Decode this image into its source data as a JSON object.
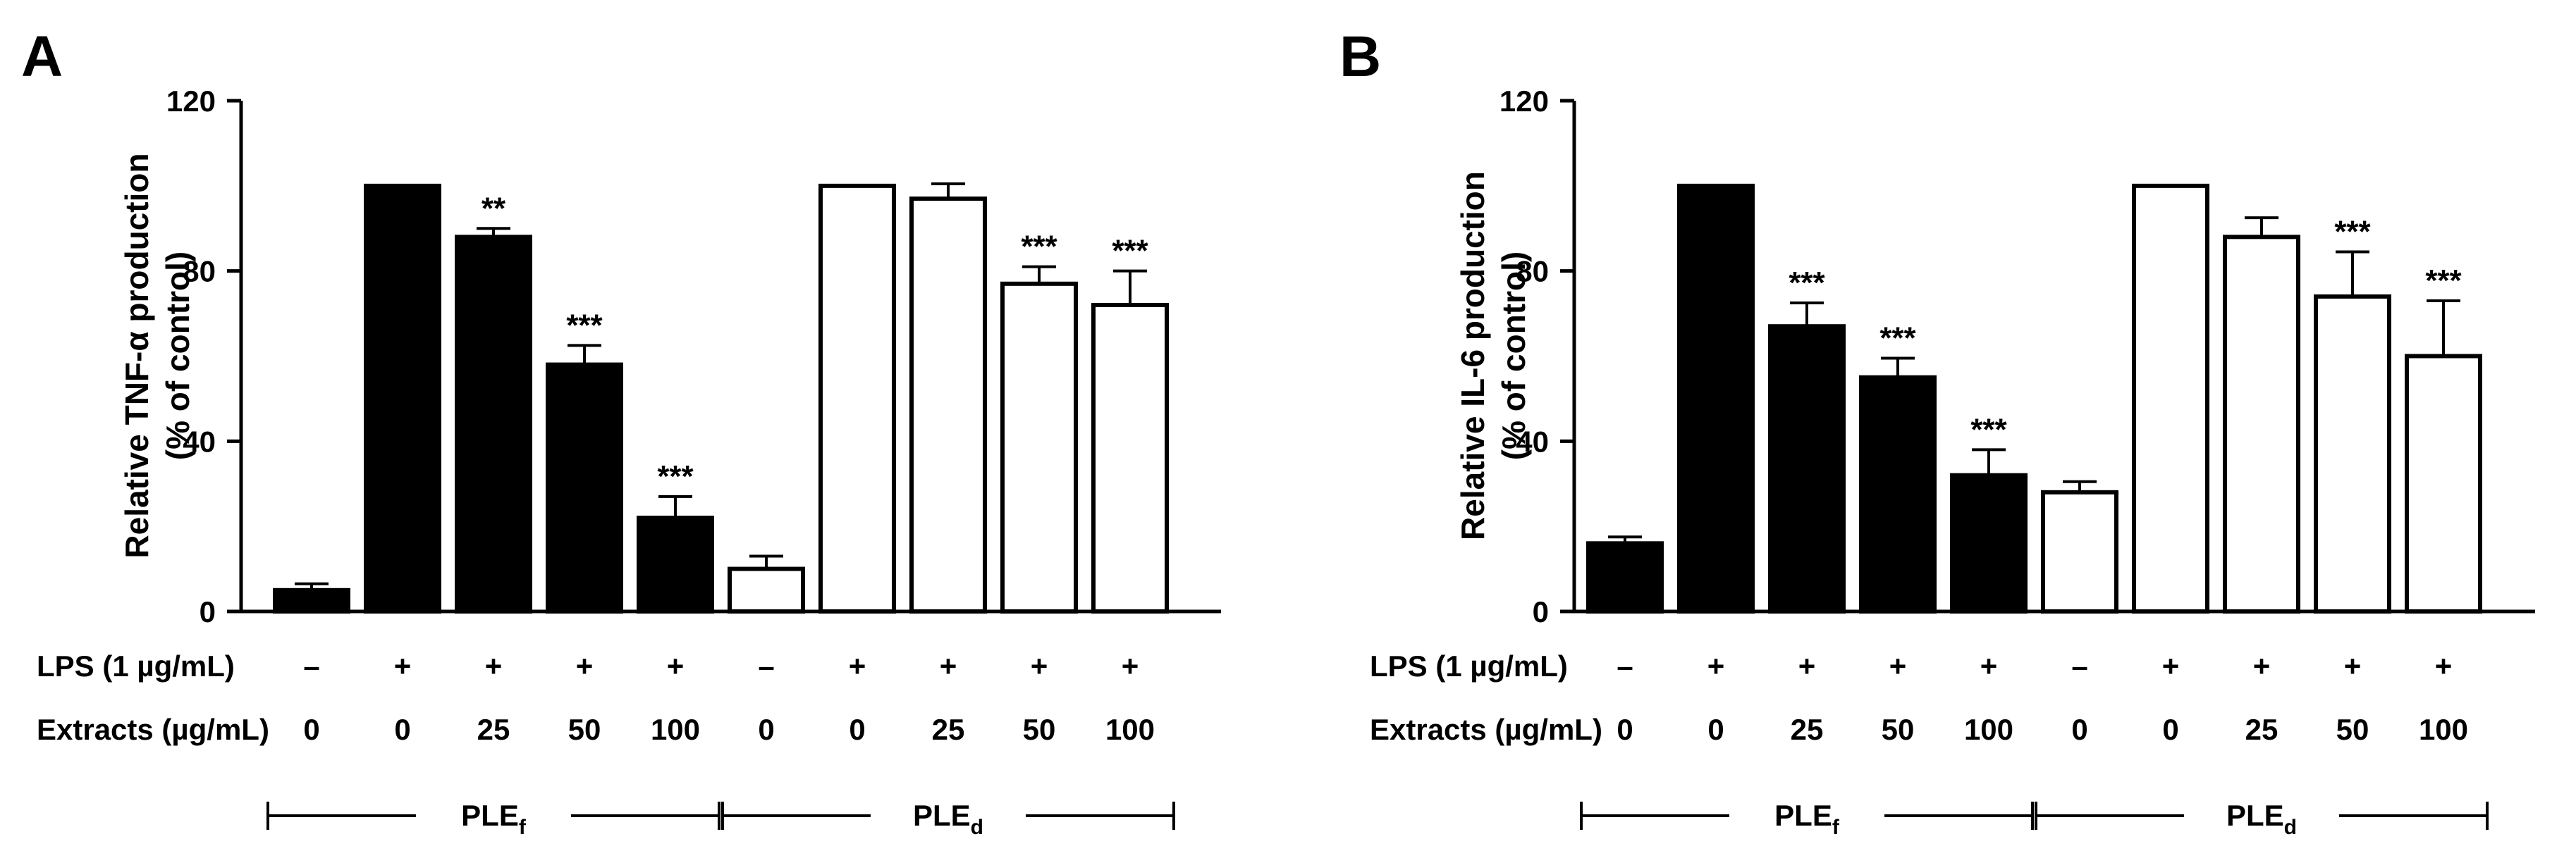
{
  "chart_data": [
    {
      "type": "bar",
      "panel_label": "A",
      "ylabel_line1": "Relative TNF-α production",
      "ylabel_line2": "(% of control)",
      "ylim": [
        0,
        120
      ],
      "yticks": [
        "0",
        "40",
        "80",
        "120"
      ],
      "row_labels": {
        "lps": "LPS (1 µg/mL)",
        "extracts": "Extracts (µg/mL)"
      },
      "lps": [
        "–",
        "+",
        "+",
        "+",
        "+",
        "–",
        "+",
        "+",
        "+",
        "+"
      ],
      "extracts": [
        "0",
        "0",
        "25",
        "50",
        "100",
        "0",
        "0",
        "25",
        "50",
        "100"
      ],
      "groups": [
        {
          "label": "PLE",
          "sub": "f"
        },
        {
          "label": "PLE",
          "sub": "d"
        }
      ],
      "series": [
        {
          "fill": "#000000",
          "values": [
            5,
            100,
            88,
            58,
            22
          ],
          "errors": [
            1.5,
            0,
            2,
            4.5,
            5
          ],
          "stars": [
            "",
            "",
            "**",
            "***",
            "***"
          ]
        },
        {
          "fill": "#ffffff",
          "values": [
            10,
            100,
            97,
            77,
            72
          ],
          "errors": [
            3,
            0,
            3.5,
            4,
            8
          ],
          "stars": [
            "",
            "",
            "",
            "***",
            "***"
          ]
        }
      ]
    },
    {
      "type": "bar",
      "panel_label": "B",
      "ylabel_line1": "Relative IL-6 production",
      "ylabel_line2": "(% of control)",
      "ylim": [
        0,
        120
      ],
      "yticks": [
        "0",
        "40",
        "80",
        "120"
      ],
      "row_labels": {
        "lps": "LPS (1 µg/mL)",
        "extracts": "Extracts (µg/mL)"
      },
      "lps": [
        "–",
        "+",
        "+",
        "+",
        "+",
        "–",
        "+",
        "+",
        "+",
        "+"
      ],
      "extracts": [
        "0",
        "0",
        "25",
        "50",
        "100",
        "0",
        "0",
        "25",
        "50",
        "100"
      ],
      "groups": [
        {
          "label": "PLE",
          "sub": "f"
        },
        {
          "label": "PLE",
          "sub": "d"
        }
      ],
      "series": [
        {
          "fill": "#000000",
          "values": [
            16,
            100,
            67,
            55,
            32
          ],
          "errors": [
            1.5,
            0,
            5.5,
            4.5,
            6
          ],
          "stars": [
            "",
            "",
            "***",
            "***",
            "***"
          ]
        },
        {
          "fill": "#ffffff",
          "values": [
            28,
            100,
            88,
            74,
            60
          ],
          "errors": [
            2.5,
            0,
            4.5,
            10.5,
            13
          ],
          "stars": [
            "",
            "",
            "",
            "***",
            "***"
          ]
        }
      ]
    }
  ]
}
